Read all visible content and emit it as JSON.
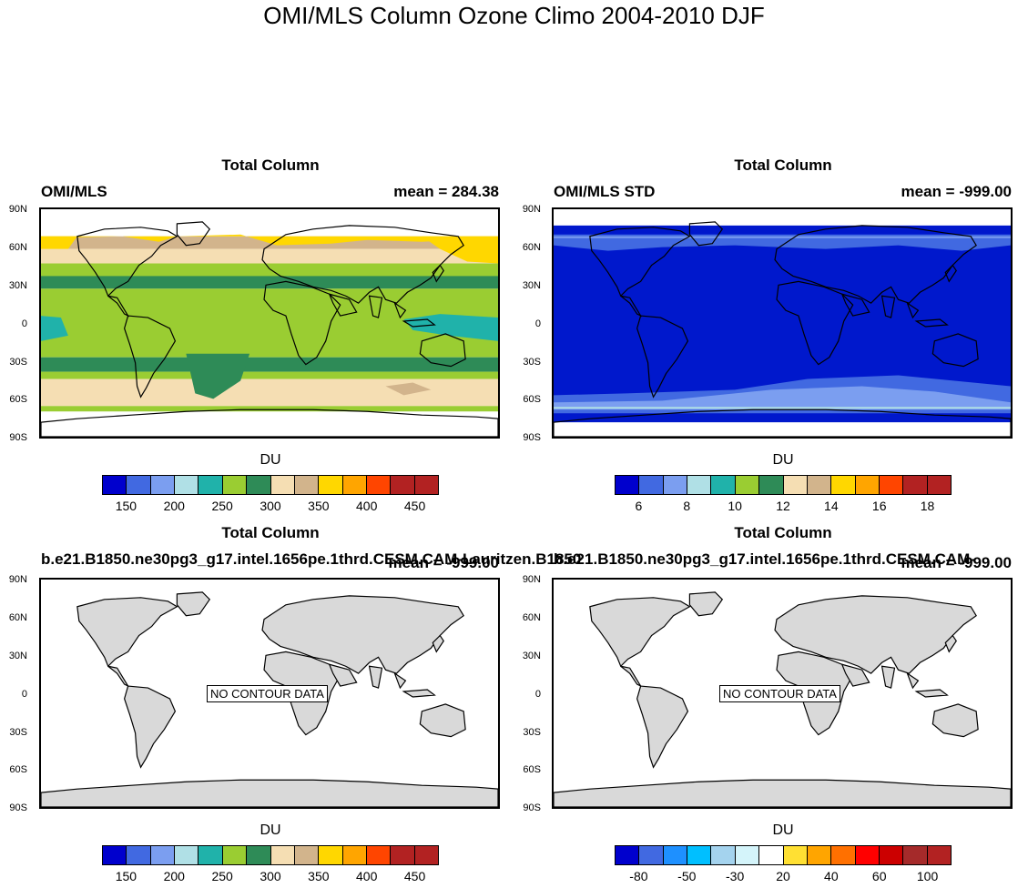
{
  "figure_title": "OMI/MLS Column Ozone Climo 2004-2010 DJF",
  "lat_labels": [
    "90N",
    "60N",
    "30N",
    "0",
    "30S",
    "60S",
    "90S"
  ],
  "no_data_text": "NO CONTOUR DATA",
  "du_label": "DU",
  "colors": {
    "land_gray": "#d9d9d9",
    "std_blue": "#0018cc",
    "std_mid": "#4169e1",
    "std_light": "#7a9ef0"
  },
  "chart_data": [
    {
      "type": "heatmap",
      "title": "Total Column",
      "left_string": "OMI/MLS",
      "right_string": "mean = 284.38",
      "colorbar": {
        "colors": [
          "#0000cd",
          "#4169e1",
          "#7b9ef0",
          "#b0e0e6",
          "#20b2aa",
          "#9acd32",
          "#2e8b57",
          "#f5deb3",
          "#d2b48c",
          "#ffd700",
          "#ffa500",
          "#ff4500",
          "#b22222",
          "#b22222"
        ],
        "labels": [
          "150",
          "200",
          "250",
          "300",
          "350",
          "400",
          "450"
        ]
      }
    },
    {
      "type": "heatmap",
      "title": "Total Column",
      "left_string": "OMI/MLS STD",
      "right_string": "mean = -999.00",
      "colorbar": {
        "colors": [
          "#0000cd",
          "#4169e1",
          "#7b9ef0",
          "#b0e0e6",
          "#20b2aa",
          "#9acd32",
          "#2e8b57",
          "#f5deb3",
          "#d2b48c",
          "#ffd700",
          "#ffa500",
          "#ff4500",
          "#b22222",
          "#b22222"
        ],
        "labels": [
          "6",
          "8",
          "10",
          "12",
          "14",
          "16",
          "18"
        ]
      }
    },
    {
      "type": "heatmap",
      "title": "Total Column",
      "left_string": "b.e21.B1850.ne30pg3_g17.intel.1656pe.1thrd.CESM.CAM-Lauritzen.B1850",
      "right_string": "mean = -999.00",
      "colorbar": {
        "colors": [
          "#0000cd",
          "#4169e1",
          "#7b9ef0",
          "#b0e0e6",
          "#20b2aa",
          "#9acd32",
          "#2e8b57",
          "#f5deb3",
          "#d2b48c",
          "#ffd700",
          "#ffa500",
          "#ff4500",
          "#b22222",
          "#b22222"
        ],
        "labels": [
          "150",
          "200",
          "250",
          "300",
          "350",
          "400",
          "450"
        ]
      }
    },
    {
      "type": "heatmap",
      "title": "Total Column",
      "left_string": "b.e21.B1850.ne30pg3_g17.intel.1656pe.1thrd.CESM.CAM-",
      "right_string": "mean = -999.00",
      "colorbar": {
        "colors": [
          "#0000cd",
          "#4169e1",
          "#1e90ff",
          "#00bfff",
          "#a4d3ee",
          "#d4f4fa",
          "#ffffff",
          "#ffe033",
          "#ffa500",
          "#ff7000",
          "#ff0000",
          "#cc0000",
          "#a52a2a",
          "#b22222"
        ],
        "labels": [
          "-80",
          "-50",
          "-30",
          "20",
          "40",
          "60",
          "100"
        ]
      }
    }
  ]
}
